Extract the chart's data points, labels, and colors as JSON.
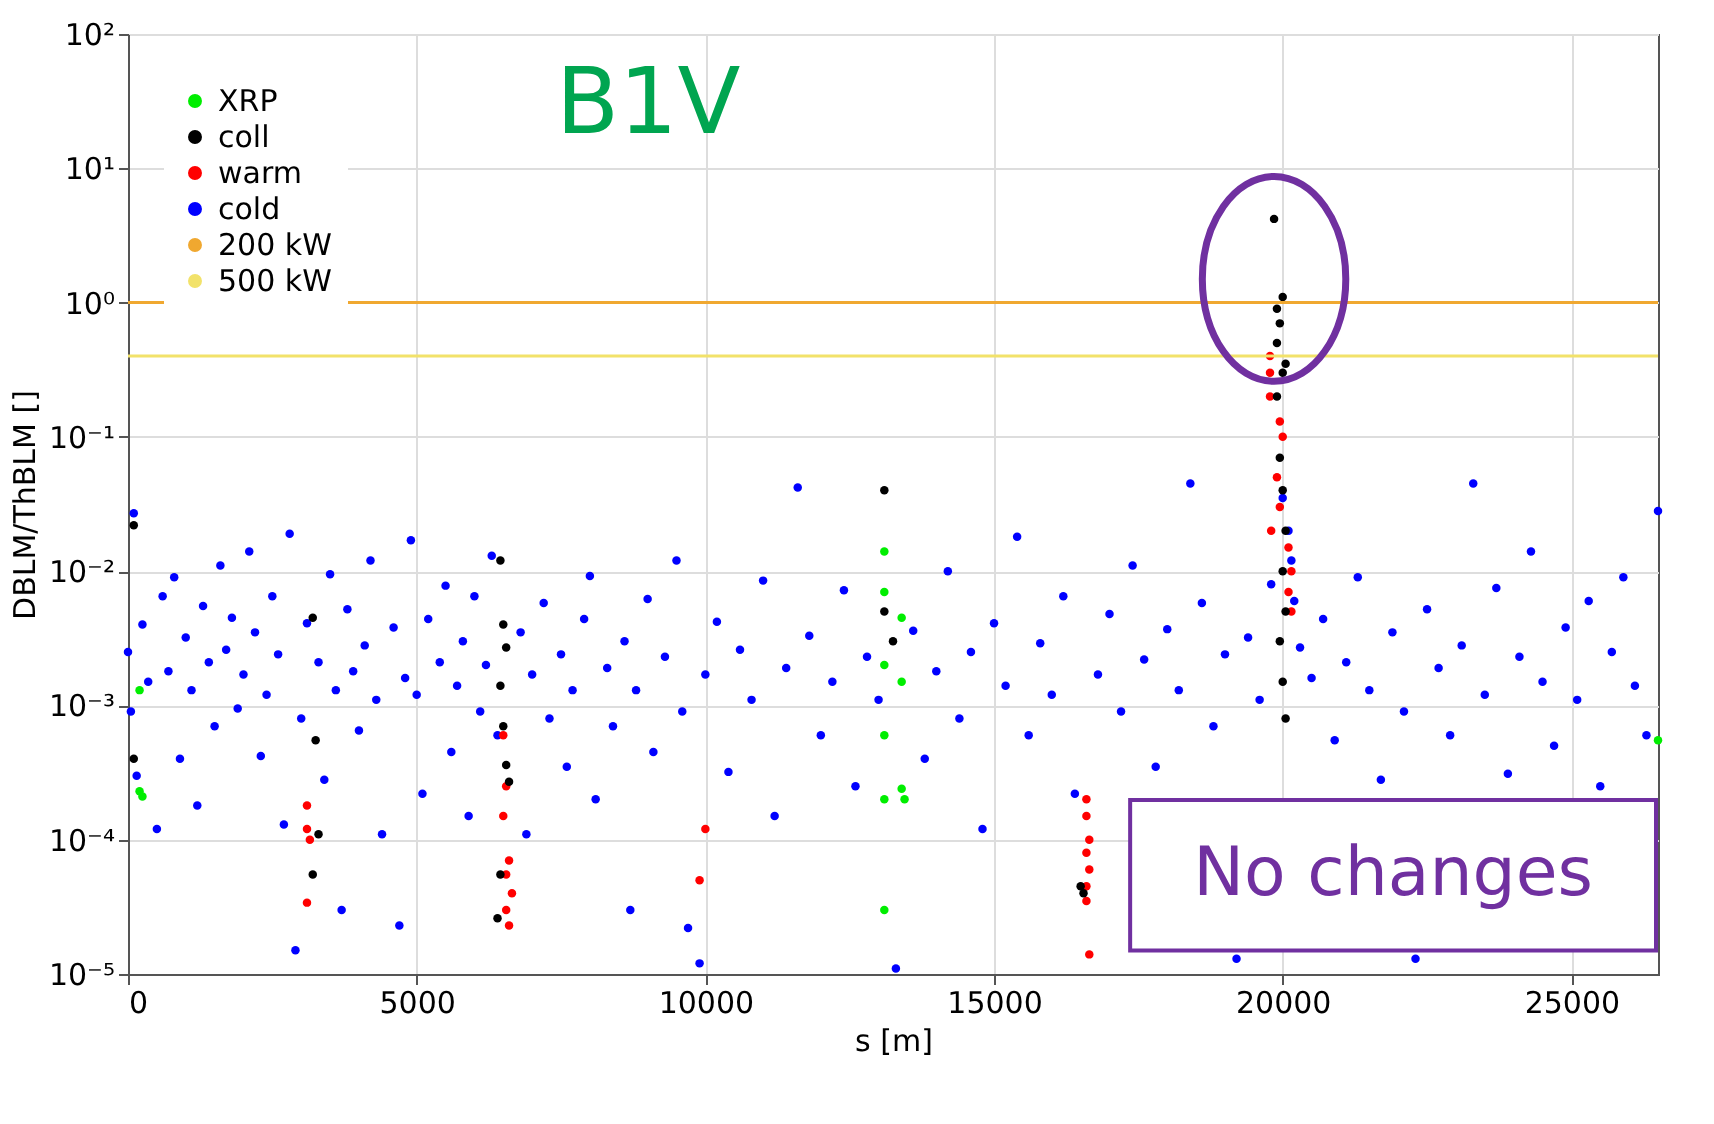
{
  "chart_data": {
    "type": "scatter",
    "xlabel": "s [m]",
    "ylabel": "DBLM/ThBLM []",
    "xlim": [
      0,
      26500
    ],
    "xticks": [
      0,
      5000,
      10000,
      15000,
      20000,
      25000
    ],
    "ylim": [
      1e-05,
      100
    ],
    "log": true,
    "yticks": [
      {
        "value": 1e-05,
        "label": "10⁻⁵"
      },
      {
        "value": 0.0001,
        "label": "10⁻⁴"
      },
      {
        "value": 0.001,
        "label": "10⁻³"
      },
      {
        "value": 0.01,
        "label": "10⁻²"
      },
      {
        "value": 0.1,
        "label": "10⁻¹"
      },
      {
        "value": 1,
        "label": "10⁰"
      },
      {
        "value": 10,
        "label": "10¹"
      },
      {
        "value": 100,
        "label": "10²"
      }
    ],
    "grid": true,
    "legend": "top left",
    "marker": "circle",
    "series": [
      {
        "name": "XRP",
        "color": "#00ee00",
        "x": [
          200,
          200,
          250,
          13100,
          13100,
          13100,
          13100,
          13100,
          13100,
          13400,
          13400,
          13400,
          13450,
          26500
        ],
        "values": [
          0.0013,
          0.00023,
          0.00021,
          0.014,
          0.007,
          0.002,
          0.0006,
          0.0002,
          3e-05,
          0.0045,
          0.0015,
          0.00024,
          0.0002,
          0.00055
        ]
      },
      {
        "name": "coll",
        "color": "#000000",
        "x": [
          19850,
          20000,
          19900,
          19950,
          19900,
          20050,
          20000,
          19900,
          19950,
          20000,
          20050,
          20000,
          20050,
          19950,
          20000,
          20050,
          6450,
          6500,
          6550,
          6450,
          6500,
          6550,
          6600,
          6450,
          6400,
          3200,
          3250,
          3300,
          3200,
          13100,
          13100,
          13250,
          100,
          100,
          16500,
          16550
        ],
        "values": [
          4.2,
          1.1,
          0.9,
          0.7,
          0.5,
          0.35,
          0.3,
          0.2,
          0.07,
          0.04,
          0.02,
          0.01,
          0.005,
          0.003,
          0.0015,
          0.0008,
          0.012,
          0.004,
          0.0027,
          0.0014,
          0.0007,
          0.00036,
          0.00027,
          5.5e-05,
          2.6e-05,
          0.0045,
          0.00055,
          0.00011,
          5.5e-05,
          0.04,
          0.005,
          0.003,
          0.022,
          0.0004,
          4.5e-05,
          4e-05
        ]
      },
      {
        "name": "warm",
        "color": "#ff0000",
        "x": [
          19780,
          19780,
          19780,
          19950,
          20000,
          19900,
          19950,
          19800,
          20100,
          20150,
          20100,
          20150,
          16600,
          16600,
          16650,
          16600,
          16650,
          16600,
          16600,
          16650,
          6500,
          6550,
          6500,
          6600,
          6550,
          6650,
          6550,
          6600,
          3100,
          3100,
          3150,
          3100,
          10000,
          9900
        ],
        "values": [
          0.4,
          0.3,
          0.2,
          0.13,
          0.1,
          0.05,
          0.03,
          0.02,
          0.015,
          0.01,
          0.007,
          0.005,
          0.0002,
          0.00015,
          0.0001,
          8e-05,
          6e-05,
          4.5e-05,
          3.5e-05,
          1.4e-05,
          0.0006,
          0.00025,
          0.00015,
          7e-05,
          5.5e-05,
          4e-05,
          3e-05,
          2.3e-05,
          0.00018,
          0.00012,
          0.0001,
          3.4e-05,
          0.00012,
          5e-05
        ]
      },
      {
        "name": "cold",
        "color": "#0000ff",
        "x": [
          0,
          50,
          100,
          150,
          250,
          350,
          500,
          600,
          700,
          800,
          900,
          1000,
          1100,
          1200,
          1300,
          1400,
          1500,
          1600,
          1700,
          1800,
          1900,
          2000,
          2100,
          2200,
          2300,
          2400,
          2500,
          2600,
          2700,
          2800,
          2900,
          3000,
          3100,
          3300,
          3400,
          3500,
          3600,
          3700,
          3800,
          3900,
          4000,
          4100,
          4200,
          4300,
          4400,
          4600,
          4700,
          4800,
          4900,
          5000,
          5100,
          5200,
          5400,
          5500,
          5600,
          5700,
          5800,
          5900,
          6000,
          6100,
          6200,
          6300,
          6400,
          6800,
          6900,
          7000,
          7200,
          7300,
          7500,
          7600,
          7700,
          7900,
          8000,
          8100,
          8300,
          8400,
          8600,
          8700,
          8800,
          9000,
          9100,
          9300,
          9500,
          9600,
          9700,
          9900,
          10000,
          10200,
          10400,
          10600,
          10800,
          11000,
          11200,
          11400,
          11600,
          11800,
          12000,
          12200,
          12400,
          12600,
          12800,
          13000,
          13300,
          13600,
          13800,
          14000,
          14200,
          14400,
          14600,
          14800,
          15000,
          15200,
          15400,
          15600,
          15800,
          16000,
          16200,
          16400,
          16800,
          17000,
          17200,
          17400,
          17600,
          17800,
          18000,
          18200,
          18400,
          18600,
          18800,
          19000,
          19200,
          19400,
          19600,
          19800,
          20000,
          20100,
          20150,
          20200,
          20300,
          20500,
          20700,
          20900,
          21100,
          21300,
          21500,
          21700,
          21900,
          22100,
          22300,
          22500,
          22700,
          22900,
          23100,
          23300,
          23500,
          23700,
          23900,
          24100,
          24300,
          24500,
          24700,
          24900,
          25100,
          25300,
          25500,
          25700,
          25900,
          26100,
          26300,
          26500
        ],
        "values": [
          0.0025,
          0.0009,
          0.027,
          0.0003,
          0.004,
          0.0015,
          0.00012,
          0.0065,
          0.0018,
          0.009,
          0.0004,
          0.0032,
          0.0013,
          0.00018,
          0.0055,
          0.0021,
          0.0007,
          0.011,
          0.0026,
          0.0045,
          0.00095,
          0.0017,
          0.014,
          0.0035,
          0.00042,
          0.0012,
          0.0065,
          0.0024,
          0.00013,
          0.019,
          1.5e-05,
          0.0008,
          0.0041,
          0.0021,
          0.00028,
          0.0095,
          0.0013,
          3e-05,
          0.0052,
          0.0018,
          0.00065,
          0.0028,
          0.012,
          0.0011,
          0.00011,
          0.0038,
          2.3e-05,
          0.0016,
          0.017,
          0.0012,
          0.00022,
          0.0044,
          0.0021,
          0.0078,
          0.00045,
          0.0014,
          0.003,
          0.00015,
          0.0065,
          0.0009,
          0.002,
          0.013,
          0.0006,
          0.0035,
          0.00011,
          0.0017,
          0.0058,
          0.0008,
          0.0024,
          0.00035,
          0.0013,
          0.0044,
          0.0092,
          0.0002,
          0.0019,
          0.0007,
          0.003,
          3e-05,
          0.0013,
          0.0062,
          0.00045,
          0.0023,
          0.012,
          0.0009,
          2.2e-05,
          1.2e-05,
          0.0017,
          0.0042,
          0.00032,
          0.0026,
          0.0011,
          0.0085,
          0.00015,
          0.0019,
          0.042,
          0.0033,
          0.0006,
          0.0015,
          0.0072,
          0.00025,
          0.0023,
          0.0011,
          1.1e-05,
          0.0036,
          0.0004,
          0.0018,
          0.01,
          0.0008,
          0.0025,
          0.00012,
          0.0041,
          0.0014,
          0.018,
          0.0006,
          0.0029,
          0.0012,
          0.0065,
          0.00022,
          0.0017,
          0.0048,
          0.0009,
          0.011,
          0.0022,
          0.00035,
          0.0037,
          0.0013,
          0.045,
          0.0058,
          0.0007,
          0.0024,
          1.3e-05,
          0.0032,
          0.0011,
          0.008,
          0.035,
          0.02,
          0.012,
          0.006,
          0.0027,
          0.0016,
          0.0044,
          0.00055,
          0.0021,
          0.009,
          0.0013,
          0.00028,
          0.0035,
          0.0009,
          1.3e-05,
          0.0052,
          0.0019,
          0.0006,
          0.0028,
          0.045,
          0.0012,
          0.0075,
          0.00031,
          0.0023,
          0.014,
          0.0015,
          0.0005,
          0.0038,
          0.0011,
          0.006,
          0.00025,
          0.0025,
          0.009,
          0.0014,
          0.0006,
          0.028
        ]
      }
    ],
    "ref_lines": [
      {
        "axis": "y",
        "value": 1,
        "label": "200 kW",
        "color": "#f0a830"
      },
      {
        "axis": "y",
        "value": 0.4,
        "label": "500 kW",
        "color": "#f2e26a"
      }
    ],
    "annotations": [
      "B1V",
      "No changes"
    ]
  }
}
